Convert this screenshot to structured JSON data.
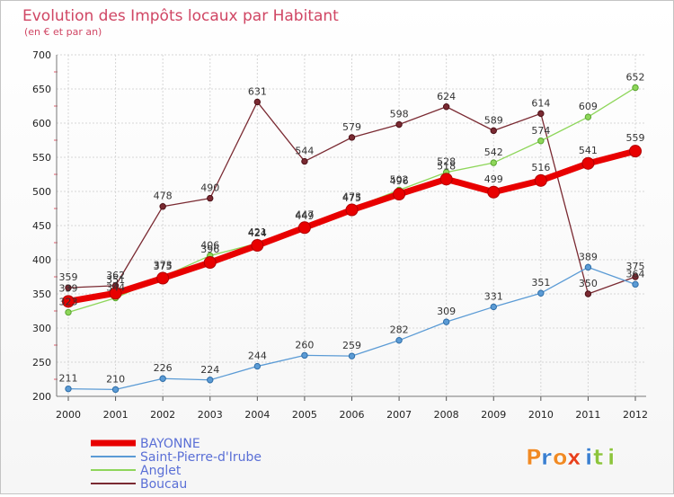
{
  "chart_data": {
    "type": "line",
    "title": "Evolution des Impôts locaux par Habitant",
    "subtitle": "(en € et par an)",
    "xlabel": "",
    "ylabel": "",
    "categories": [
      "2000",
      "2001",
      "2002",
      "2003",
      "2004",
      "2005",
      "2006",
      "2007",
      "2008",
      "2009",
      "2010",
      "2011",
      "2012"
    ],
    "ylim": [
      200,
      700
    ],
    "yticks": [
      200,
      250,
      300,
      350,
      400,
      450,
      500,
      550,
      600,
      650,
      700
    ],
    "grid": true,
    "legend_position": "bottom-left",
    "series": [
      {
        "name": "BAYONNE",
        "color": "#e80000",
        "values": [
          339,
          351,
          373,
          396,
          421,
          447,
          473,
          496,
          518,
          499,
          516,
          541,
          559
        ],
        "labels": [
          "339",
          "351",
          "373",
          "396",
          "421",
          "447",
          "473",
          "496",
          "518",
          "499",
          "516",
          "541",
          "559"
        ]
      },
      {
        "name": "Saint-Pierre-d'Irube",
        "color": "#5b9bd5",
        "values": [
          211,
          210,
          226,
          224,
          244,
          260,
          259,
          282,
          309,
          331,
          351,
          389,
          364
        ],
        "labels": [
          "211",
          "210",
          "226",
          "224",
          "244",
          "260",
          "259",
          "282",
          "309",
          "331",
          "351",
          "389",
          "364"
        ]
      },
      {
        "name": "Anglet",
        "color": "#8ed65a",
        "values": [
          323,
          344,
          375,
          406,
          424,
          449,
          475,
          502,
          528,
          542,
          574,
          609,
          652
        ],
        "labels": [
          "323",
          "344",
          "375",
          "406",
          "424",
          "449",
          "475",
          "502",
          "528",
          "542",
          "574",
          "609",
          "652"
        ]
      },
      {
        "name": "Boucau",
        "color": "#7a2a32",
        "values": [
          359,
          362,
          478,
          490,
          631,
          544,
          579,
          598,
          624,
          589,
          614,
          350,
          375
        ],
        "labels": [
          "359",
          "362",
          "478",
          "490",
          "631",
          "544",
          "579",
          "598",
          "624",
          "589",
          "614",
          "350",
          "375"
        ]
      }
    ]
  },
  "brand": {
    "letters": [
      "P",
      "r",
      "o",
      "x",
      "i",
      "t",
      "i"
    ]
  }
}
